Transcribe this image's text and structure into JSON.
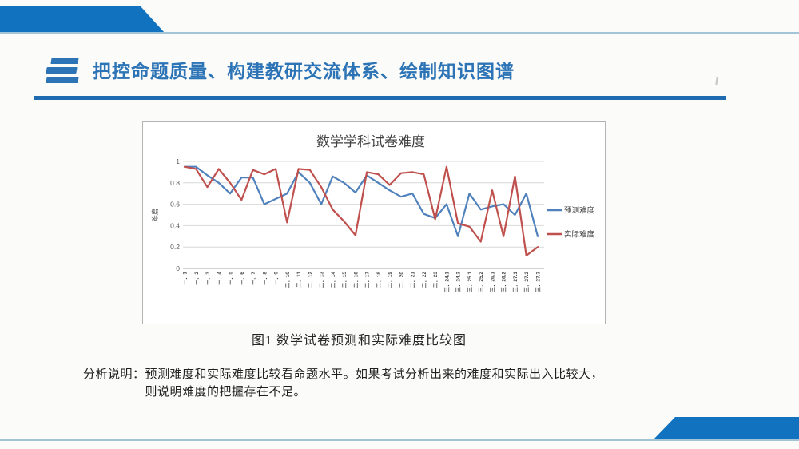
{
  "slide": {
    "title": "把控命题质量、构建教研交流体系、绘制知识图谱",
    "caption": "图1 数学试卷预测和实际难度比较图",
    "analysis": {
      "label": "分析说明：",
      "line1": "预测难度和实际难度比较看命题水平。如果考试分析出来的难度和实际出入比较大，",
      "line2": "则说明难度的把握存在不足。"
    },
    "colors": {
      "accent_blue": "#1173c0",
      "title_blue": "#2d74b6",
      "underline_blue": "#1e6bb2",
      "thin_line": "#a3c3d6",
      "grid_line": "#d9d9d9",
      "axis_line": "#a6a6a6",
      "axis_text": "#595959",
      "chart_title_text": "#404040"
    }
  },
  "chart_data": {
    "type": "line",
    "title": "数学学科试卷难度",
    "xlabel": "",
    "ylabel": "难度",
    "ylim": [
      0,
      1
    ],
    "yticks": [
      "0",
      "0.2",
      "0.4",
      "0.6",
      "0.8",
      "1"
    ],
    "grid": true,
    "legend_position": "right",
    "categories": [
      "一．1",
      "一．2",
      "一．3",
      "一．4",
      "一．5",
      "一．6",
      "一．7",
      "一．8",
      "一．9",
      "二．10",
      "二．11",
      "二．12",
      "二．13",
      "二．14",
      "二．15",
      "二．16",
      "二．17",
      "二．18",
      "二．19",
      "二．20",
      "二．21",
      "二．22",
      "二．23",
      "三．24.1",
      "三．24.2",
      "三．25.1",
      "三．25.2",
      "三．26.1",
      "三．26.2",
      "三．27.1",
      "三．27.2",
      "三．27.3"
    ],
    "series": [
      {
        "name": "预测难度",
        "color": "#4f81bd",
        "values": [
          0.95,
          0.95,
          0.87,
          0.8,
          0.7,
          0.85,
          0.85,
          0.6,
          0.65,
          0.7,
          0.9,
          0.8,
          0.6,
          0.86,
          0.8,
          0.71,
          0.87,
          0.8,
          0.73,
          0.67,
          0.7,
          0.51,
          0.47,
          0.6,
          0.3,
          0.7,
          0.55,
          0.58,
          0.6,
          0.5,
          0.7,
          0.3
        ]
      },
      {
        "name": "实际难度",
        "color": "#c0504d",
        "values": [
          0.95,
          0.93,
          0.76,
          0.93,
          0.8,
          0.64,
          0.92,
          0.88,
          0.93,
          0.43,
          0.93,
          0.92,
          0.76,
          0.55,
          0.44,
          0.31,
          0.9,
          0.88,
          0.78,
          0.89,
          0.9,
          0.88,
          0.46,
          0.95,
          0.42,
          0.39,
          0.25,
          0.73,
          0.3,
          0.86,
          0.12,
          0.2
        ]
      }
    ]
  }
}
